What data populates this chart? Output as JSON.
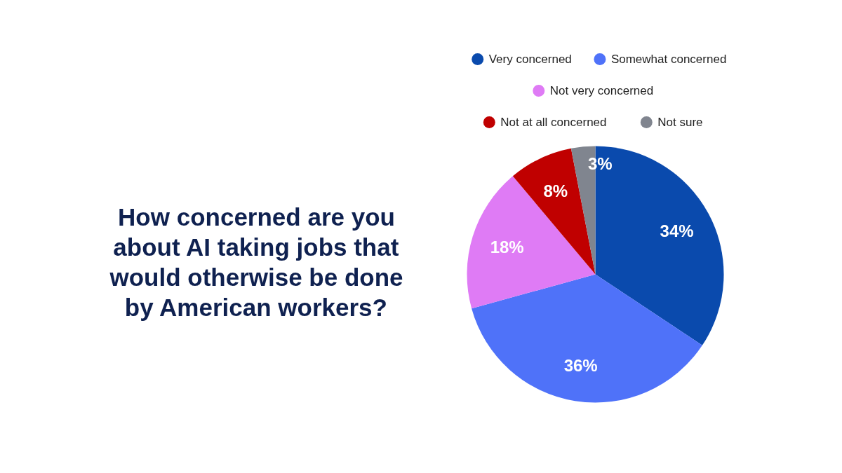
{
  "chart_data": {
    "type": "pie",
    "title": "How concerned are you about AI taking jobs that would otherwise be done by American workers?",
    "categories": [
      "Very concerned",
      "Somewhat concerned",
      "Not very concerned",
      "Not at all concerned",
      "Not sure"
    ],
    "values": [
      34,
      36,
      18,
      8,
      3
    ],
    "colors": [
      "#0a4aad",
      "#4f72f9",
      "#df7bf5",
      "#c00000",
      "#80858f"
    ],
    "value_labels": [
      "34%",
      "36%",
      "18%",
      "8%",
      "3%"
    ],
    "legend": "top"
  }
}
